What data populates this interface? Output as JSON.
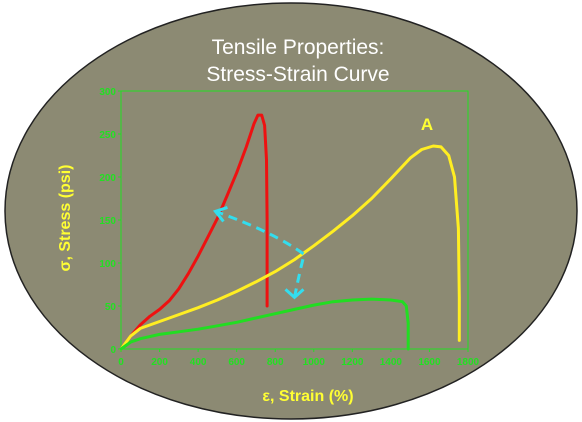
{
  "chart_data": {
    "type": "line",
    "title_lines": [
      "Tensile Properties:",
      "Stress-Strain Curve"
    ],
    "xlabel": "ε, Strain (%)",
    "ylabel": "σ, Stress (psi)",
    "xlim": [
      0,
      1800
    ],
    "ylim": [
      0,
      300
    ],
    "xticks": [
      0,
      200,
      400,
      600,
      800,
      1000,
      1200,
      1400,
      1600,
      1800
    ],
    "yticks": [
      0,
      50,
      100,
      150,
      200,
      250,
      300
    ],
    "grid": false,
    "background_color": "#8c8a73",
    "axis_color": "#22e022",
    "series": [
      {
        "color": "#ee1111",
        "points": [
          [
            0,
            0
          ],
          [
            50,
            15
          ],
          [
            100,
            28
          ],
          [
            150,
            38
          ],
          [
            200,
            46
          ],
          [
            250,
            56
          ],
          [
            300,
            70
          ],
          [
            350,
            88
          ],
          [
            400,
            108
          ],
          [
            450,
            130
          ],
          [
            500,
            152
          ],
          [
            550,
            178
          ],
          [
            600,
            205
          ],
          [
            650,
            235
          ],
          [
            690,
            262
          ],
          [
            710,
            272
          ],
          [
            730,
            272
          ],
          [
            745,
            260
          ],
          [
            755,
            220
          ],
          [
            758,
            150
          ],
          [
            758,
            100
          ],
          [
            758,
            50
          ]
        ]
      },
      {
        "name": "A",
        "color": "#ffee22",
        "points": [
          [
            0,
            0
          ],
          [
            50,
            15
          ],
          [
            100,
            24
          ],
          [
            200,
            32
          ],
          [
            300,
            40
          ],
          [
            400,
            48
          ],
          [
            500,
            57
          ],
          [
            600,
            67
          ],
          [
            700,
            78
          ],
          [
            800,
            90
          ],
          [
            900,
            104
          ],
          [
            1000,
            120
          ],
          [
            1100,
            137
          ],
          [
            1200,
            155
          ],
          [
            1300,
            175
          ],
          [
            1400,
            198
          ],
          [
            1500,
            222
          ],
          [
            1560,
            232
          ],
          [
            1620,
            236
          ],
          [
            1660,
            235
          ],
          [
            1700,
            225
          ],
          [
            1730,
            200
          ],
          [
            1750,
            140
          ],
          [
            1755,
            60
          ],
          [
            1755,
            10
          ]
        ]
      },
      {
        "color": "#22dd22",
        "points": [
          [
            0,
            0
          ],
          [
            50,
            8
          ],
          [
            100,
            12
          ],
          [
            200,
            17
          ],
          [
            300,
            20
          ],
          [
            400,
            23
          ],
          [
            500,
            27
          ],
          [
            600,
            31
          ],
          [
            700,
            36
          ],
          [
            800,
            41
          ],
          [
            900,
            46
          ],
          [
            1000,
            51
          ],
          [
            1100,
            55
          ],
          [
            1200,
            57
          ],
          [
            1300,
            58
          ],
          [
            1400,
            57
          ],
          [
            1460,
            55
          ],
          [
            1480,
            50
          ],
          [
            1490,
            30
          ],
          [
            1490,
            0
          ]
        ]
      }
    ],
    "annotations": [
      {
        "type": "dashed-curved-arrow",
        "color": "#33ddee",
        "from": [
          950,
          110
        ],
        "to": [
          490,
          160
        ],
        "end_arrow": [
          900,
          60
        ]
      }
    ]
  }
}
